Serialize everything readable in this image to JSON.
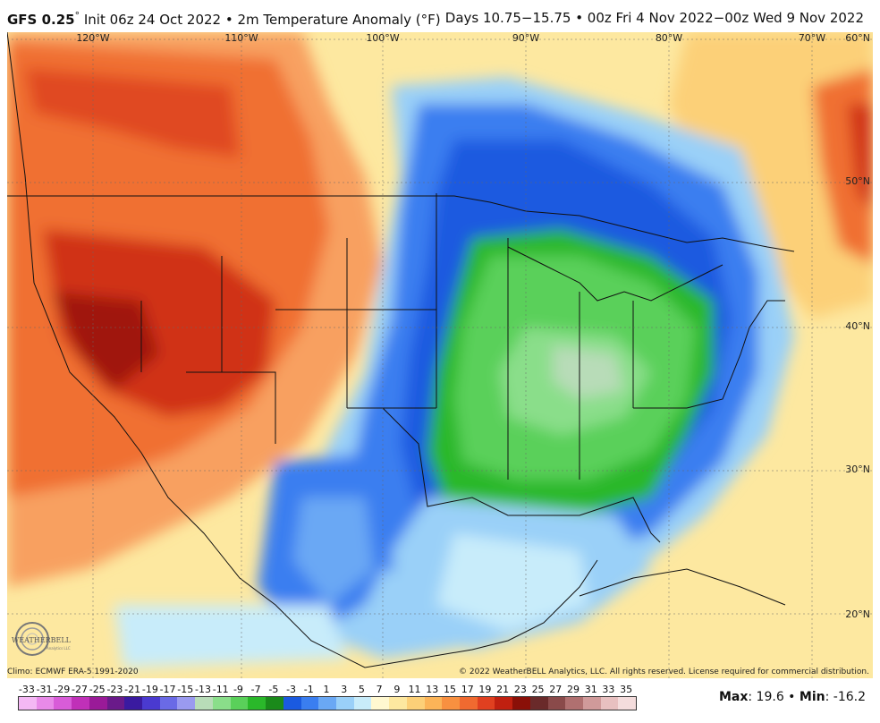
{
  "header": {
    "model": "GFS 0.25",
    "degree": "°",
    "init": " Init 06z 24 Oct 2022 • 2m Temperature Anomaly (°F)",
    "valid": "Days 10.75−15.75 • 00z Fri 4 Nov 2022−00z Wed 9 Nov 2022"
  },
  "map": {
    "longitudes": [
      "120°W",
      "110°W",
      "100°W",
      "90°W",
      "80°W",
      "70°W"
    ],
    "latitudes": [
      "60°N",
      "50°N",
      "40°N",
      "30°N",
      "20°N"
    ]
  },
  "footer": {
    "climo": "Climo: ECMWF ERA-5 1991-2020",
    "copyright": "© 2022 WeatherBELL Analytics, LLC. All rights reserved. License required for commercial distribution.",
    "logo_text": "WEATHERBELL",
    "logo_subtext": "Analytics LLC"
  },
  "legend": {
    "ticks": [
      "-33",
      "-31",
      "-29",
      "-27",
      "-25",
      "-23",
      "-21",
      "-19",
      "-17",
      "-15",
      "-13",
      "-11",
      "-9",
      "-7",
      "-5",
      "-3",
      "-1",
      "1",
      "3",
      "5",
      "7",
      "9",
      "11",
      "13",
      "15",
      "17",
      "19",
      "21",
      "23",
      "25",
      "27",
      "29",
      "31",
      "33",
      "35"
    ],
    "colors": [
      "#f4b8f4",
      "#e88ae8",
      "#d85cd8",
      "#c030b8",
      "#9a1a98",
      "#6a1a8a",
      "#3a1aa0",
      "#4a3ad0",
      "#6a6ae6",
      "#9a9af0",
      "#b8dcb8",
      "#8ade8a",
      "#5ad05a",
      "#2ab82a",
      "#1a8a1a",
      "#1a5ae0",
      "#3a7ef0",
      "#6aa8f4",
      "#9ad0f8",
      "#c8ecfa",
      "#fff8d0",
      "#fde8a0",
      "#fcd078",
      "#fbb458",
      "#f89040",
      "#f06a30",
      "#e04020",
      "#c02010",
      "#8a1008",
      "#6a2a2a",
      "#8a4a4a",
      "#b07070",
      "#d09a9a",
      "#e8c0c0",
      "#f4dcdc"
    ]
  },
  "stats": {
    "max_label": "Max",
    "max_value": ": 19.6",
    "separator": " • ",
    "min_label": "Min",
    "min_value": ": -16.2"
  }
}
